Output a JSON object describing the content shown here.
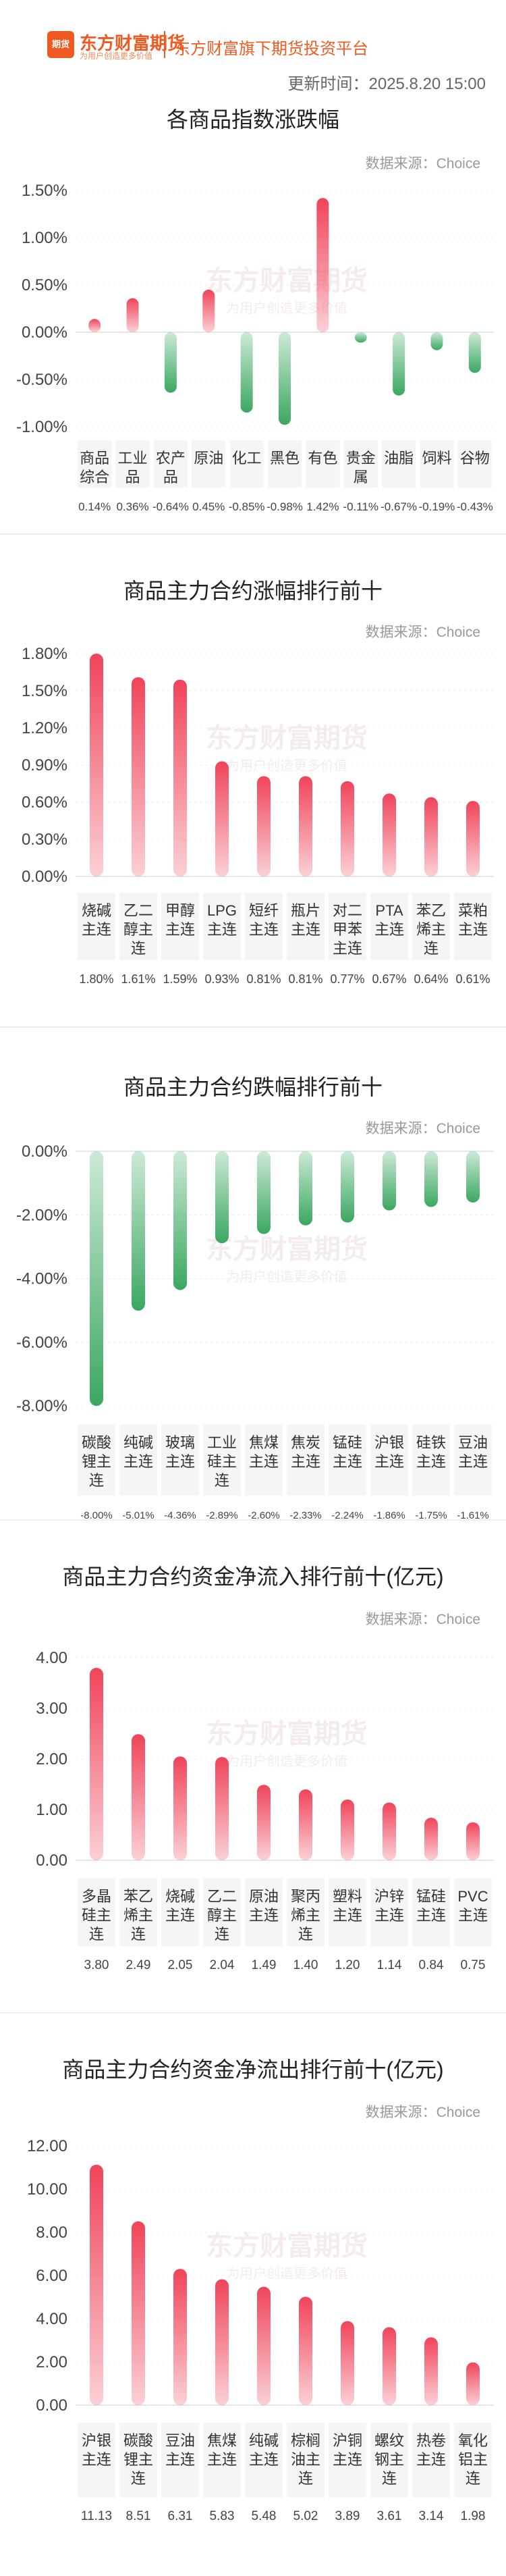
{
  "header": {
    "logo_box": "期货",
    "logo_text": "东方财富期货",
    "logo_sub": "为用户创造更多价值",
    "slogan": "东方财富旗下期货投资平台",
    "update_time": "更新时间：2025.8.20 15:00"
  },
  "watermark": {
    "main": "东方财富期货",
    "sub": "为用户创造更多价值"
  },
  "source_label": "数据来源：Choice",
  "colors": {
    "up": "#f0445a",
    "down": "#3aa860",
    "accent": "#ef5a22"
  },
  "chart_data": [
    {
      "type": "bar",
      "title": "各商品指数涨跌幅",
      "categories": [
        [
          "商品",
          "综合"
        ],
        [
          "工业",
          "品"
        ],
        [
          "农产",
          "品"
        ],
        [
          "原油"
        ],
        [
          "化工"
        ],
        [
          "黑色"
        ],
        [
          "有色"
        ],
        [
          "贵金",
          "属"
        ],
        [
          "油脂"
        ],
        [
          "饲料"
        ],
        [
          "谷物"
        ]
      ],
      "values": [
        0.14,
        0.36,
        -0.64,
        0.45,
        -0.85,
        -0.98,
        1.42,
        -0.11,
        -0.67,
        -0.19,
        -0.43
      ],
      "value_labels": [
        "0.14%",
        "0.36%",
        "-0.64%",
        "0.45%",
        "-0.85%",
        "-0.98%",
        "1.42%",
        "-0.11%",
        "-0.67%",
        "-0.19%",
        "-0.43%"
      ],
      "yticks": [
        "1.50%",
        "1.00%",
        "0.50%",
        "0.00%",
        "-0.50%",
        "-1.00%"
      ],
      "ylim": [
        -1.0,
        1.5
      ]
    },
    {
      "type": "bar",
      "title": "商品主力合约涨幅排行前十",
      "categories": [
        [
          "烧碱",
          "主连"
        ],
        [
          "乙二",
          "醇主",
          "连"
        ],
        [
          "甲醇",
          "主连"
        ],
        [
          "LPG",
          "主连"
        ],
        [
          "短纤",
          "主连"
        ],
        [
          "瓶片",
          "主连"
        ],
        [
          "对二",
          "甲苯",
          "主连"
        ],
        [
          "PTA",
          "主连"
        ],
        [
          "苯乙",
          "烯主",
          "连"
        ],
        [
          "菜粕",
          "主连"
        ]
      ],
      "values": [
        1.8,
        1.61,
        1.59,
        0.93,
        0.81,
        0.81,
        0.77,
        0.67,
        0.64,
        0.61
      ],
      "value_labels": [
        "1.80%",
        "1.61%",
        "1.59%",
        "0.93%",
        "0.81%",
        "0.81%",
        "0.77%",
        "0.67%",
        "0.64%",
        "0.61%"
      ],
      "yticks": [
        "1.80%",
        "1.50%",
        "1.20%",
        "0.90%",
        "0.60%",
        "0.30%",
        "0.00%"
      ],
      "ylim": [
        0,
        1.8
      ]
    },
    {
      "type": "bar",
      "title": "商品主力合约跌幅排行前十",
      "categories": [
        [
          "碳酸",
          "锂主",
          "连"
        ],
        [
          "纯碱",
          "主连"
        ],
        [
          "玻璃",
          "主连"
        ],
        [
          "工业",
          "硅主",
          "连"
        ],
        [
          "焦煤",
          "主连"
        ],
        [
          "焦炭",
          "主连"
        ],
        [
          "锰硅",
          "主连"
        ],
        [
          "沪银",
          "主连"
        ],
        [
          "硅铁",
          "主连"
        ],
        [
          "豆油",
          "主连"
        ]
      ],
      "values": [
        -8.0,
        -5.01,
        -4.36,
        -2.89,
        -2.6,
        -2.33,
        -2.24,
        -1.86,
        -1.75,
        -1.61
      ],
      "value_labels": [
        "-8.00%",
        "-5.01%",
        "-4.36%",
        "-2.89%",
        "-2.60%",
        "-2.33%",
        "-2.24%",
        "-1.86%",
        "-1.75%",
        "-1.61%"
      ],
      "yticks": [
        "0.00%",
        "-2.00%",
        "-4.00%",
        "-6.00%",
        "-8.00%"
      ],
      "ylim": [
        -8,
        0
      ]
    },
    {
      "type": "bar",
      "title": "商品主力合约资金净流入排行前十(亿元)",
      "categories": [
        [
          "多晶",
          "硅主",
          "连"
        ],
        [
          "苯乙",
          "烯主",
          "连"
        ],
        [
          "烧碱",
          "主连"
        ],
        [
          "乙二",
          "醇主",
          "连"
        ],
        [
          "原油",
          "主连"
        ],
        [
          "聚丙",
          "烯主",
          "连"
        ],
        [
          "塑料",
          "主连"
        ],
        [
          "沪锌",
          "主连"
        ],
        [
          "锰硅",
          "主连"
        ],
        [
          "PVC",
          "主连"
        ]
      ],
      "values": [
        3.8,
        2.49,
        2.05,
        2.04,
        1.49,
        1.4,
        1.2,
        1.14,
        0.84,
        0.75
      ],
      "value_labels": [
        "3.80",
        "2.49",
        "2.05",
        "2.04",
        "1.49",
        "1.40",
        "1.20",
        "1.14",
        "0.84",
        "0.75"
      ],
      "yticks": [
        "4.00",
        "3.00",
        "2.00",
        "1.00",
        "0.00"
      ],
      "ylim": [
        0,
        4
      ]
    },
    {
      "type": "bar",
      "title": "商品主力合约资金净流出排行前十(亿元)",
      "categories": [
        [
          "沪银",
          "主连"
        ],
        [
          "碳酸",
          "锂主",
          "连"
        ],
        [
          "豆油",
          "主连"
        ],
        [
          "焦煤",
          "主连"
        ],
        [
          "纯碱",
          "主连"
        ],
        [
          "棕榈",
          "油主",
          "连"
        ],
        [
          "沪铜",
          "主连"
        ],
        [
          "螺纹",
          "钢主",
          "连"
        ],
        [
          "热卷",
          "主连"
        ],
        [
          "氧化",
          "铝主",
          "连"
        ]
      ],
      "values": [
        11.13,
        8.51,
        6.31,
        5.83,
        5.48,
        5.02,
        3.89,
        3.61,
        3.14,
        1.98
      ],
      "value_labels": [
        "11.13",
        "8.51",
        "6.31",
        "5.83",
        "5.48",
        "5.02",
        "3.89",
        "3.61",
        "3.14",
        "1.98"
      ],
      "yticks": [
        "12.00",
        "10.00",
        "8.00",
        "6.00",
        "4.00",
        "2.00",
        "0.00"
      ],
      "ylim": [
        0,
        12
      ]
    }
  ]
}
